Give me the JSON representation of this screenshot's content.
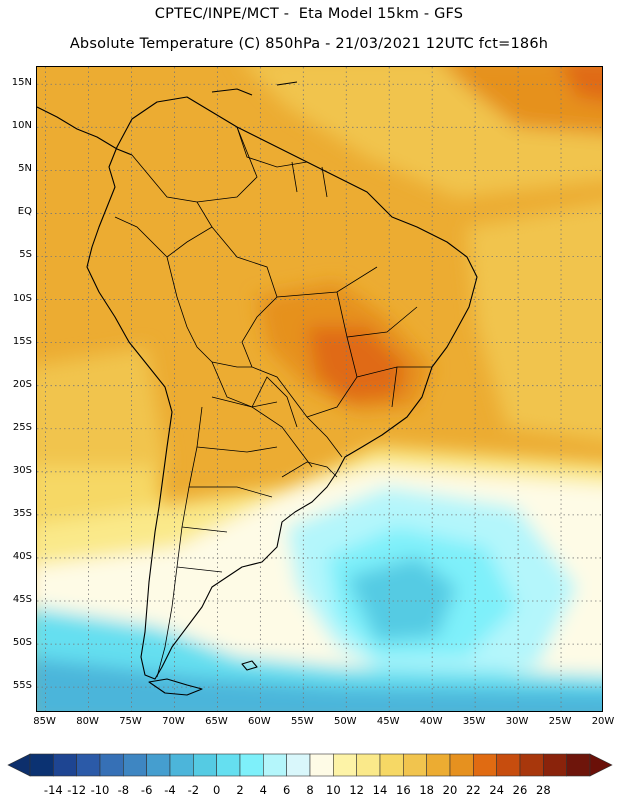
{
  "header": {
    "line1": "CPTEC/INPE/MCT -  Eta Model 15km - GFS",
    "line2": "Absolute Temperature (C) 850hPa - 21/03/2021 12UTC fct=186h"
  },
  "map": {
    "region": "South America",
    "lon_range": [
      -86,
      -20
    ],
    "lat_range": [
      -58,
      17
    ],
    "lat_ticks": [
      {
        "value": 15,
        "label": "15N"
      },
      {
        "value": 10,
        "label": "10N"
      },
      {
        "value": 5,
        "label": "5N"
      },
      {
        "value": 0,
        "label": "EQ"
      },
      {
        "value": -5,
        "label": "5S"
      },
      {
        "value": -10,
        "label": "10S"
      },
      {
        "value": -15,
        "label": "15S"
      },
      {
        "value": -20,
        "label": "20S"
      },
      {
        "value": -25,
        "label": "25S"
      },
      {
        "value": -30,
        "label": "30S"
      },
      {
        "value": -35,
        "label": "35S"
      },
      {
        "value": -40,
        "label": "40S"
      },
      {
        "value": -45,
        "label": "45S"
      },
      {
        "value": -50,
        "label": "50S"
      },
      {
        "value": -55,
        "label": "55S"
      }
    ],
    "lon_ticks": [
      {
        "value": -85,
        "label": "85W"
      },
      {
        "value": -80,
        "label": "80W"
      },
      {
        "value": -75,
        "label": "75W"
      },
      {
        "value": -70,
        "label": "70W"
      },
      {
        "value": -65,
        "label": "65W"
      },
      {
        "value": -60,
        "label": "60W"
      },
      {
        "value": -55,
        "label": "55W"
      },
      {
        "value": -50,
        "label": "50W"
      },
      {
        "value": -45,
        "label": "45W"
      },
      {
        "value": -40,
        "label": "40W"
      },
      {
        "value": -35,
        "label": "35W"
      },
      {
        "value": -30,
        "label": "30W"
      },
      {
        "value": -25,
        "label": "25W"
      },
      {
        "value": -20,
        "label": "20W"
      }
    ],
    "gridlines": "dotted"
  },
  "colorbar": {
    "levels": [
      "-14",
      "-12",
      "-10",
      "-8",
      "-6",
      "-4",
      "-2",
      "0",
      "2",
      "4",
      "6",
      "8",
      "10",
      "12",
      "14",
      "16",
      "18",
      "20",
      "22",
      "24",
      "26",
      "28"
    ],
    "colors": [
      "#0b3272",
      "#1e4592",
      "#2b5aa8",
      "#3670b6",
      "#3e86c2",
      "#459ecf",
      "#4cb5da",
      "#55cbe3",
      "#65dff0",
      "#7ef0fa",
      "#b4f6fb",
      "#d9f7fb",
      "#fefbe6",
      "#fdf3a7",
      "#fae98a",
      "#f6d865",
      "#f1c44e",
      "#ecac32",
      "#e6911f",
      "#e06b12",
      "#c74d0e",
      "#a8370c",
      "#8a230b",
      "#6e150b"
    ],
    "low_color": "#0d2f6c",
    "high_color": "#6a1008"
  }
}
